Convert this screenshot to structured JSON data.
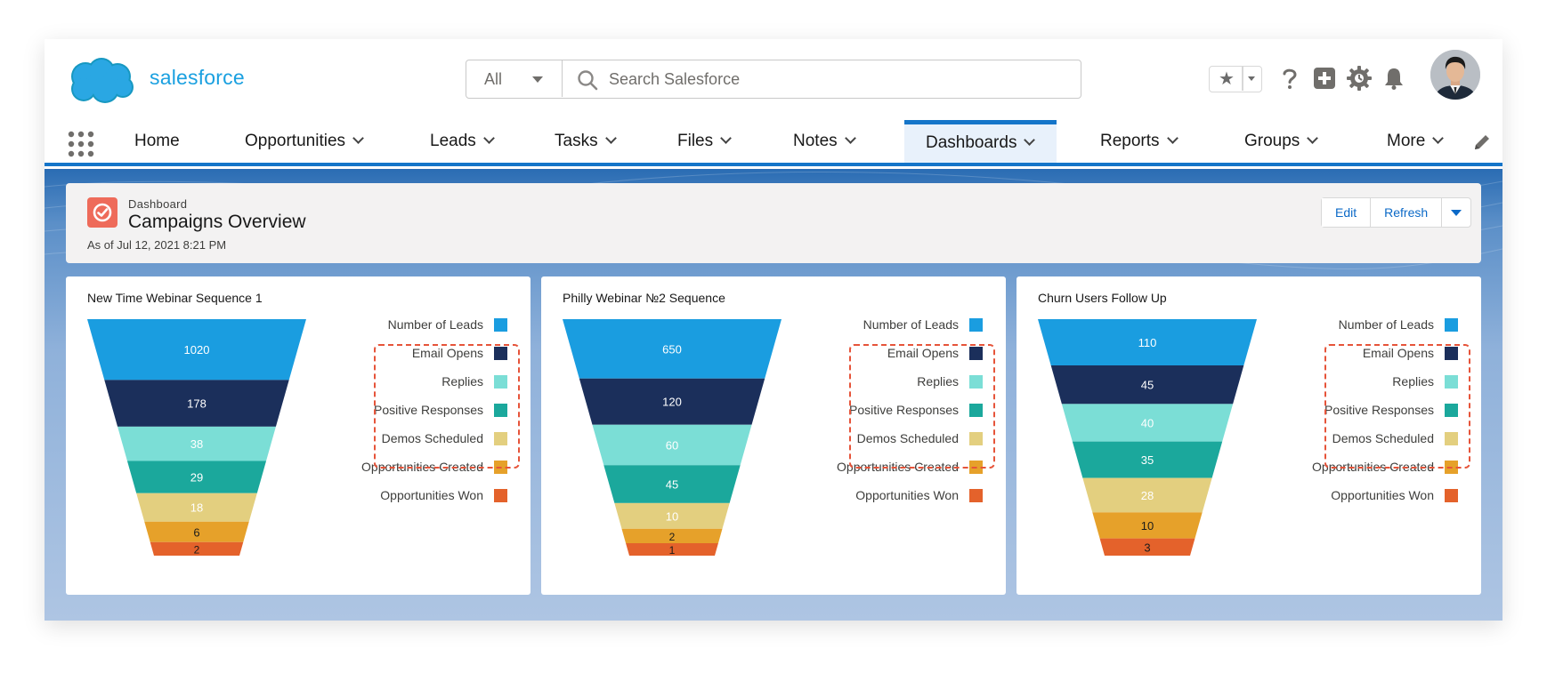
{
  "header": {
    "brand": "salesforce",
    "search": {
      "scope": "All",
      "placeholder": "Search Salesforce"
    }
  },
  "nav": {
    "items": [
      {
        "label": "Home",
        "dropdown": false
      },
      {
        "label": "Opportunities",
        "dropdown": true
      },
      {
        "label": "Leads",
        "dropdown": true
      },
      {
        "label": "Tasks",
        "dropdown": true
      },
      {
        "label": "Files",
        "dropdown": true
      },
      {
        "label": "Notes",
        "dropdown": true
      },
      {
        "label": "Dashboards",
        "dropdown": true,
        "active": true
      },
      {
        "label": "Reports",
        "dropdown": true
      },
      {
        "label": "Groups",
        "dropdown": true
      },
      {
        "label": "More",
        "dropdown": true
      }
    ]
  },
  "dashboard": {
    "kicker": "Dashboard",
    "title": "Campaigns Overview",
    "as_of": "As of Jul 12, 2021 8:21 PM",
    "buttons": {
      "edit": "Edit",
      "refresh": "Refresh"
    }
  },
  "legend": [
    {
      "label": "Number of Leads",
      "color": "#1a9de0"
    },
    {
      "label": "Email Opens",
      "color": "#1b2f5b"
    },
    {
      "label": "Replies",
      "color": "#7bded6"
    },
    {
      "label": "Positive Responses",
      "color": "#1ba89c"
    },
    {
      "label": "Demos Scheduled",
      "color": "#e3cf7f"
    },
    {
      "label": "Opportunities Created",
      "color": "#e6a12a"
    },
    {
      "label": "Opportunities Won",
      "color": "#e4622b"
    }
  ],
  "chart_data": [
    {
      "type": "funnel",
      "title": "New Time Webinar Sequence 1",
      "categories": [
        "Number of Leads",
        "Email Opens",
        "Replies",
        "Positive Responses",
        "Demos Scheduled",
        "Opportunities Created",
        "Opportunities Won"
      ],
      "values": [
        1020,
        178,
        38,
        29,
        18,
        6,
        2
      ]
    },
    {
      "type": "funnel",
      "title": "Philly Webinar №2 Sequence",
      "categories": [
        "Number of Leads",
        "Email Opens",
        "Replies",
        "Positive Responses",
        "Demos Scheduled",
        "Opportunities Created",
        "Opportunities Won"
      ],
      "values": [
        650,
        120,
        60,
        45,
        10,
        2,
        1
      ]
    },
    {
      "type": "funnel",
      "title": "Churn Users Follow Up",
      "categories": [
        "Number of Leads",
        "Email Opens",
        "Replies",
        "Positive Responses",
        "Demos Scheduled",
        "Opportunities Created",
        "Opportunities Won"
      ],
      "values": [
        110,
        45,
        40,
        35,
        28,
        10,
        3
      ]
    }
  ]
}
